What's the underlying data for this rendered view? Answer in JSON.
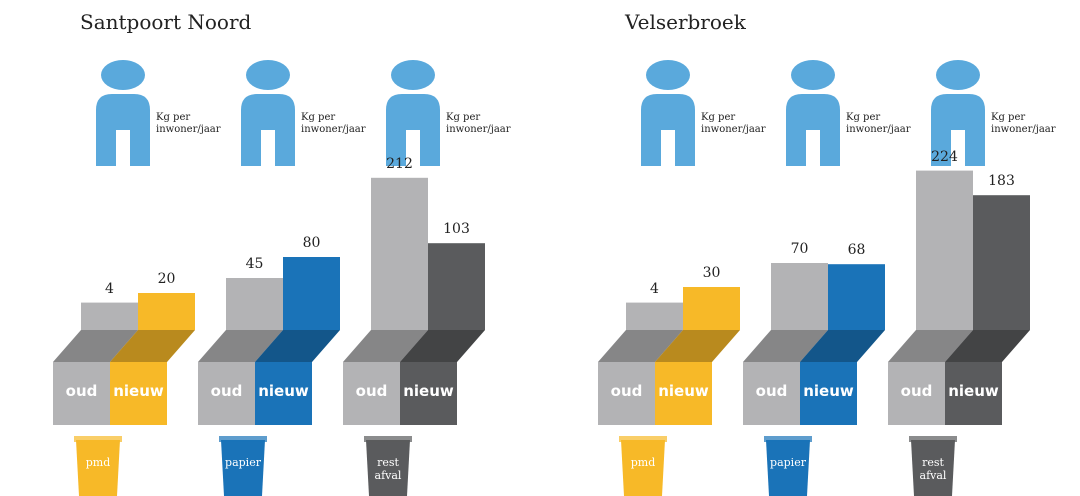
{
  "chart_data": [
    {
      "type": "bar",
      "title": "Santpoort Noord",
      "unit_label": "Kg per inwoner/jaar",
      "categories": [
        "pmd",
        "papier",
        "rest afval"
      ],
      "category_colors": [
        "#f7b928",
        "#1a73b8",
        "#5a5b5d"
      ],
      "series": [
        {
          "name": "oud",
          "color": "#b3b3b5",
          "values": [
            4,
            45,
            212
          ]
        },
        {
          "name": "nieuw",
          "values": [
            20,
            80,
            103
          ]
        }
      ]
    },
    {
      "type": "bar",
      "title": "Velserbroek",
      "unit_label": "Kg per inwoner/jaar",
      "categories": [
        "pmd",
        "papier",
        "rest afval"
      ],
      "category_colors": [
        "#f7b928",
        "#1a73b8",
        "#5a5b5d"
      ],
      "series": [
        {
          "name": "oud",
          "color": "#b3b3b5",
          "values": [
            4,
            70,
            224
          ]
        },
        {
          "name": "nieuw",
          "values": [
            30,
            68,
            183
          ]
        }
      ]
    }
  ]
}
